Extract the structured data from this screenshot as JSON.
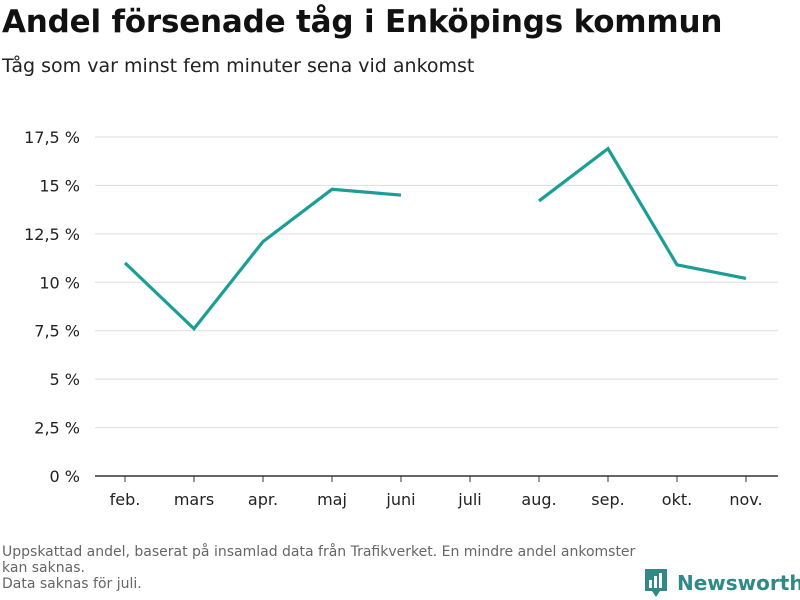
{
  "title": "Andel försenade tåg i Enköpings kommun",
  "subtitle": "Tåg som var minst fem minuter sena vid ankomst",
  "footnote": {
    "line1": "Uppskattad andel, baserat på insamlad data från Trafikverket. En mindre andel ankomster kan saknas.",
    "line2": "Data saknas för juli."
  },
  "brand": {
    "name": "Newsworthy",
    "color": "#2f8a86"
  },
  "colors": {
    "line": "#1a9e96",
    "grid": "#dddddd",
    "axis": "#333333"
  },
  "chart_data": {
    "type": "line",
    "categories": [
      "feb.",
      "mars",
      "apr.",
      "maj",
      "juni",
      "juli",
      "aug.",
      "sep.",
      "okt.",
      "nov."
    ],
    "series": [
      {
        "values": [
          11.0,
          7.6,
          12.1,
          14.8,
          14.5,
          null,
          14.2,
          16.9,
          10.9,
          10.2
        ]
      }
    ],
    "ylim": [
      0,
      17.5
    ],
    "yticks": [
      0,
      2.5,
      5,
      7.5,
      10,
      12.5,
      15,
      17.5
    ],
    "ytick_labels": [
      "0 %",
      "2,5 %",
      "5 %",
      "7,5 %",
      "10 %",
      "12,5 %",
      "15 %",
      "17,5 %"
    ],
    "grid": true,
    "legend": "none"
  }
}
